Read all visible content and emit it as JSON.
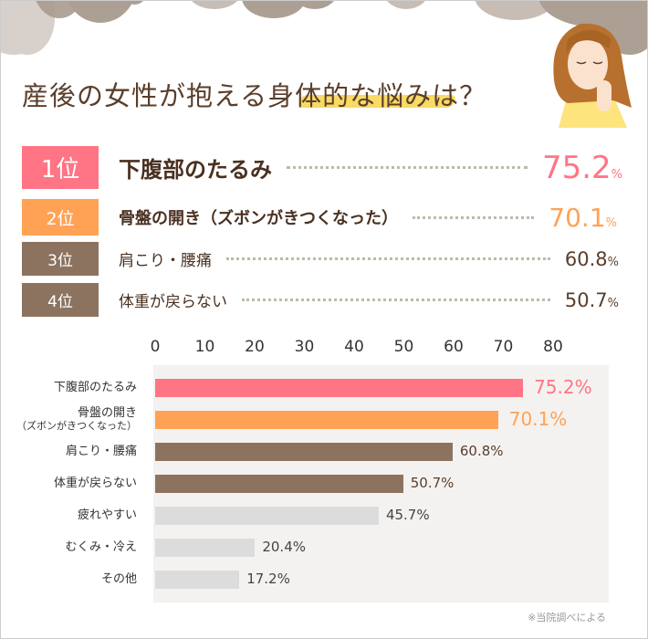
{
  "title": "産後の女性が抱える身体的な悩みは？",
  "ranking": [
    {
      "rank": "1位",
      "label": "下腹部のたるみ",
      "value": "75.2",
      "unit": "%",
      "color": "#ff7585"
    },
    {
      "rank": "2位",
      "label": "骨盤の開き（ズボンがきつくなった）",
      "value": "70.1",
      "unit": "%",
      "color": "#ffa255"
    },
    {
      "rank": "3位",
      "label": "肩こり・腰痛",
      "value": "60.8",
      "unit": "%",
      "color": "#8c7360"
    },
    {
      "rank": "4位",
      "label": "体重が戻らない",
      "value": "50.7",
      "unit": "%",
      "color": "#8c7360"
    }
  ],
  "chart_data": {
    "type": "bar",
    "orientation": "horizontal",
    "categories": [
      "下腹部のたるみ",
      "骨盤の開き（ズボンがきつくなった）",
      "肩こり・腰痛",
      "体重が戻らない",
      "疲れやすい",
      "むくみ・冷え",
      "その他"
    ],
    "category_lines": [
      [
        "下腹部のたるみ"
      ],
      [
        "骨盤の開き",
        "（ズボンがきつくなった）"
      ],
      [
        "肩こり・腰痛"
      ],
      [
        "体重が戻らない"
      ],
      [
        "疲れやすい"
      ],
      [
        "むくみ・冷え"
      ],
      [
        "その他"
      ]
    ],
    "values": [
      75.2,
      70.1,
      60.8,
      50.7,
      45.7,
      20.4,
      17.2
    ],
    "labels": [
      "75.2%",
      "70.1%",
      "60.8%",
      "50.7%",
      "45.7%",
      "20.4%",
      "17.2%"
    ],
    "colors": [
      "#ff7585",
      "#ffa255",
      "#8c7360",
      "#8c7360",
      "#dcdcdc",
      "#dcdcdc",
      "#dcdcdc"
    ],
    "label_colors": [
      "#ff7585",
      "#ffa255",
      "#5a3e2b",
      "#5a3e2b",
      "#444444",
      "#444444",
      "#444444"
    ],
    "xticks": [
      "0",
      "10",
      "20",
      "30",
      "40",
      "50",
      "60",
      "70",
      "80"
    ],
    "xlim": [
      0,
      80
    ],
    "unit": "%"
  },
  "note": "※当院調べによる"
}
